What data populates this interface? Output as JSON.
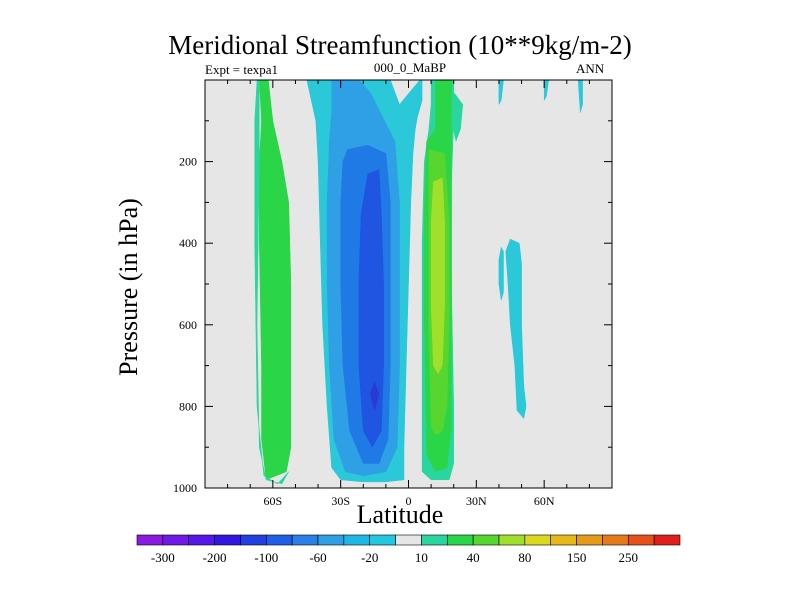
{
  "chart_data": {
    "type": "heatmap",
    "subtype": "filled-contour",
    "title": "Meridional Streamfunction (10**9kg/m-2)",
    "left_label": "Expt = texpa1",
    "center_label": "000_0_MaBP",
    "right_label": "ANN",
    "xlabel": "Latitude",
    "ylabel": "Pressure (in hPa)",
    "xlim": [
      -90,
      90
    ],
    "ylim": [
      1000,
      0
    ],
    "xticks": [
      {
        "value": -60,
        "label": "60S"
      },
      {
        "value": -30,
        "label": "30S"
      },
      {
        "value": 0,
        "label": "0"
      },
      {
        "value": 30,
        "label": "30N"
      },
      {
        "value": 60,
        "label": "60N"
      }
    ],
    "yticks": [
      {
        "value": 200,
        "label": "200"
      },
      {
        "value": 400,
        "label": "400"
      },
      {
        "value": 600,
        "label": "600"
      },
      {
        "value": 800,
        "label": "800"
      },
      {
        "value": 1000,
        "label": "1000"
      }
    ],
    "background_color": "#e6e6e6",
    "colorbar": {
      "colors": [
        "#8a1ae0",
        "#6f1ae6",
        "#5518e6",
        "#3216e2",
        "#2040e0",
        "#1f5fe6",
        "#2a80e6",
        "#2fa0e6",
        "#1fb8e6",
        "#23c8e0",
        "#e6e6e6",
        "#2ad6a0",
        "#2ad648",
        "#56d62e",
        "#a0e02a",
        "#dcd81e",
        "#e6b81a",
        "#e69a1a",
        "#e67a1a",
        "#e6501a",
        "#e01e1a"
      ],
      "labels": [
        "-300",
        "-200",
        "-100",
        "-60",
        "-20",
        "10",
        "40",
        "80",
        "150",
        "250"
      ]
    },
    "regions": [
      {
        "name": "southern-cell-outer",
        "color": "#2ac8d8",
        "value": "-20",
        "points": [
          [
            -52,
            0
          ],
          [
            -45,
            0
          ],
          [
            -41,
            100
          ],
          [
            -40,
            200
          ],
          [
            -39,
            400
          ],
          [
            -38,
            600
          ],
          [
            -36,
            800
          ],
          [
            -34,
            950
          ],
          [
            -30,
            980
          ],
          [
            -20,
            985
          ],
          [
            -10,
            985
          ],
          [
            -2,
            980
          ],
          [
            -2,
            900
          ],
          [
            -1,
            700
          ],
          [
            0,
            500
          ],
          [
            1,
            300
          ],
          [
            2,
            180
          ],
          [
            3,
            120
          ],
          [
            4,
            90
          ],
          [
            6,
            50
          ],
          [
            6,
            0
          ],
          [
            5,
            0
          ],
          [
            -4,
            60
          ],
          [
            -8,
            0
          ],
          [
            -22,
            0
          ],
          [
            -30,
            0
          ],
          [
            -40,
            0
          ],
          [
            -44,
            0
          ]
        ]
      },
      {
        "name": "southern-cell-minus-40",
        "color": "#2fa0e6",
        "value": "-40",
        "points": [
          [
            -34,
            0
          ],
          [
            -22,
            0
          ],
          [
            -17,
            30
          ],
          [
            -6,
            150
          ],
          [
            -4,
            300
          ],
          [
            -4,
            500
          ],
          [
            -4,
            700
          ],
          [
            -5,
            900
          ],
          [
            -10,
            960
          ],
          [
            -20,
            970
          ],
          [
            -28,
            960
          ],
          [
            -33,
            880
          ],
          [
            -35,
            700
          ],
          [
            -36,
            500
          ],
          [
            -36,
            300
          ],
          [
            -35,
            150
          ],
          [
            -34,
            80
          ]
        ]
      },
      {
        "name": "southern-cell-minus-60",
        "color": "#1f7ae6",
        "value": "-60",
        "points": [
          [
            -27,
            170
          ],
          [
            -18,
            160
          ],
          [
            -10,
            180
          ],
          [
            -8,
            300
          ],
          [
            -8,
            500
          ],
          [
            -8,
            700
          ],
          [
            -9,
            880
          ],
          [
            -13,
            940
          ],
          [
            -20,
            940
          ],
          [
            -26,
            860
          ],
          [
            -29,
            700
          ],
          [
            -30,
            500
          ],
          [
            -30,
            300
          ],
          [
            -29,
            200
          ]
        ]
      },
      {
        "name": "southern-cell-minus-80",
        "color": "#1f55e0",
        "value": "-80",
        "points": [
          [
            -18,
            230
          ],
          [
            -13,
            220
          ],
          [
            -12,
            330
          ],
          [
            -11,
            500
          ],
          [
            -11,
            700
          ],
          [
            -12,
            860
          ],
          [
            -16,
            900
          ],
          [
            -20,
            860
          ],
          [
            -22,
            700
          ],
          [
            -22,
            500
          ],
          [
            -21,
            330
          ]
        ]
      },
      {
        "name": "southern-cell-minus-100",
        "color": "#2a3ad6",
        "value": "-100",
        "points": [
          [
            -15,
            740
          ],
          [
            -13,
            770
          ],
          [
            -15,
            810
          ],
          [
            -17,
            770
          ]
        ]
      },
      {
        "name": "polar-southern-positive",
        "color": "#2ad648",
        "value": "10",
        "points": [
          [
            -66,
            0
          ],
          [
            -62,
            0
          ],
          [
            -60,
            100
          ],
          [
            -56,
            200
          ],
          [
            -53,
            300
          ],
          [
            -52,
            500
          ],
          [
            -52,
            700
          ],
          [
            -52,
            900
          ],
          [
            -54,
            960
          ],
          [
            -63,
            980
          ],
          [
            -65,
            880
          ],
          [
            -65,
            700
          ],
          [
            -66,
            400
          ],
          [
            -66,
            200
          ],
          [
            -65,
            100
          ]
        ]
      },
      {
        "name": "polar-southern-edge",
        "color": "#2ad6a0",
        "value": "5",
        "points": [
          [
            -67,
            0
          ],
          [
            -66,
            0
          ],
          [
            -66,
            200
          ],
          [
            -67,
            600
          ],
          [
            -66,
            900
          ],
          [
            -63,
            980
          ],
          [
            -56,
            990
          ],
          [
            -53,
            960
          ],
          [
            -58,
            990
          ],
          [
            -64,
            970
          ],
          [
            -67,
            800
          ],
          [
            -68,
            400
          ],
          [
            -68,
            100
          ]
        ]
      },
      {
        "name": "northern-cell-outer",
        "color": "#2ad6a0",
        "value": "10",
        "points": [
          [
            10,
            0
          ],
          [
            20,
            0
          ],
          [
            20,
            100
          ],
          [
            19,
            250
          ],
          [
            19,
            500
          ],
          [
            20,
            800
          ],
          [
            20,
            940
          ],
          [
            18,
            980
          ],
          [
            10,
            980
          ],
          [
            6,
            960
          ],
          [
            6,
            700
          ],
          [
            6,
            400
          ],
          [
            7,
            200
          ],
          [
            9,
            120
          ],
          [
            10,
            60
          ]
        ]
      },
      {
        "name": "northern-cell-40",
        "color": "#2ad648",
        "value": "40",
        "points": [
          [
            12,
            0
          ],
          [
            19,
            0
          ],
          [
            19,
            100
          ],
          [
            19,
            300
          ],
          [
            19,
            600
          ],
          [
            19,
            850
          ],
          [
            17,
            950
          ],
          [
            12,
            960
          ],
          [
            8,
            920
          ],
          [
            7,
            600
          ],
          [
            7,
            300
          ],
          [
            8,
            150
          ],
          [
            12,
            120
          ],
          [
            12,
            60
          ]
        ]
      },
      {
        "name": "northern-cell-60",
        "color": "#56d62e",
        "value": "60",
        "points": [
          [
            9,
            170
          ],
          [
            16,
            180
          ],
          [
            18,
            350
          ],
          [
            18,
            600
          ],
          [
            17,
            800
          ],
          [
            15,
            860
          ],
          [
            12,
            870
          ],
          [
            10,
            850
          ],
          [
            9,
            600
          ],
          [
            9,
            300
          ]
        ]
      },
      {
        "name": "northern-cell-80",
        "color": "#a0e02a",
        "value": "80",
        "points": [
          [
            11,
            250
          ],
          [
            15,
            240
          ],
          [
            16,
            350
          ],
          [
            16,
            550
          ],
          [
            15,
            700
          ],
          [
            13,
            720
          ],
          [
            11,
            700
          ],
          [
            10,
            550
          ],
          [
            10,
            350
          ]
        ]
      },
      {
        "name": "northern-ferrel-blob",
        "color": "#2ac8d8",
        "value": "-10",
        "points": [
          [
            45,
            390
          ],
          [
            49,
            400
          ],
          [
            50,
            450
          ],
          [
            50,
            600
          ],
          [
            51,
            750
          ],
          [
            52,
            800
          ],
          [
            51,
            830
          ],
          [
            48,
            810
          ],
          [
            47,
            700
          ],
          [
            45,
            600
          ],
          [
            44,
            500
          ],
          [
            43,
            420
          ]
        ]
      },
      {
        "name": "northern-ferrel-sliver",
        "color": "#2ac8d8",
        "value": "-10",
        "points": [
          [
            41,
            410
          ],
          [
            42,
            420
          ],
          [
            42,
            520
          ],
          [
            41,
            540
          ],
          [
            40,
            500
          ],
          [
            40,
            440
          ]
        ]
      },
      {
        "name": "upper-small-1",
        "color": "#2ac8d8",
        "value": "-10",
        "points": [
          [
            40,
            0
          ],
          [
            42,
            0
          ],
          [
            41,
            50
          ],
          [
            40,
            60
          ]
        ]
      },
      {
        "name": "upper-small-2",
        "color": "#2ac8d8",
        "value": "-10",
        "points": [
          [
            60,
            0
          ],
          [
            62,
            0
          ],
          [
            61,
            40
          ],
          [
            60,
            50
          ]
        ]
      },
      {
        "name": "upper-small-3",
        "color": "#2ac8d8",
        "value": "-10",
        "points": [
          [
            75,
            0
          ],
          [
            77,
            0
          ],
          [
            77,
            60
          ],
          [
            76,
            80
          ]
        ]
      },
      {
        "name": "upper-small-4",
        "color": "#2ad6a0",
        "value": "10",
        "points": [
          [
            20,
            30
          ],
          [
            24,
            60
          ],
          [
            23,
            120
          ],
          [
            21,
            150
          ],
          [
            19,
            100
          ]
        ]
      }
    ]
  }
}
